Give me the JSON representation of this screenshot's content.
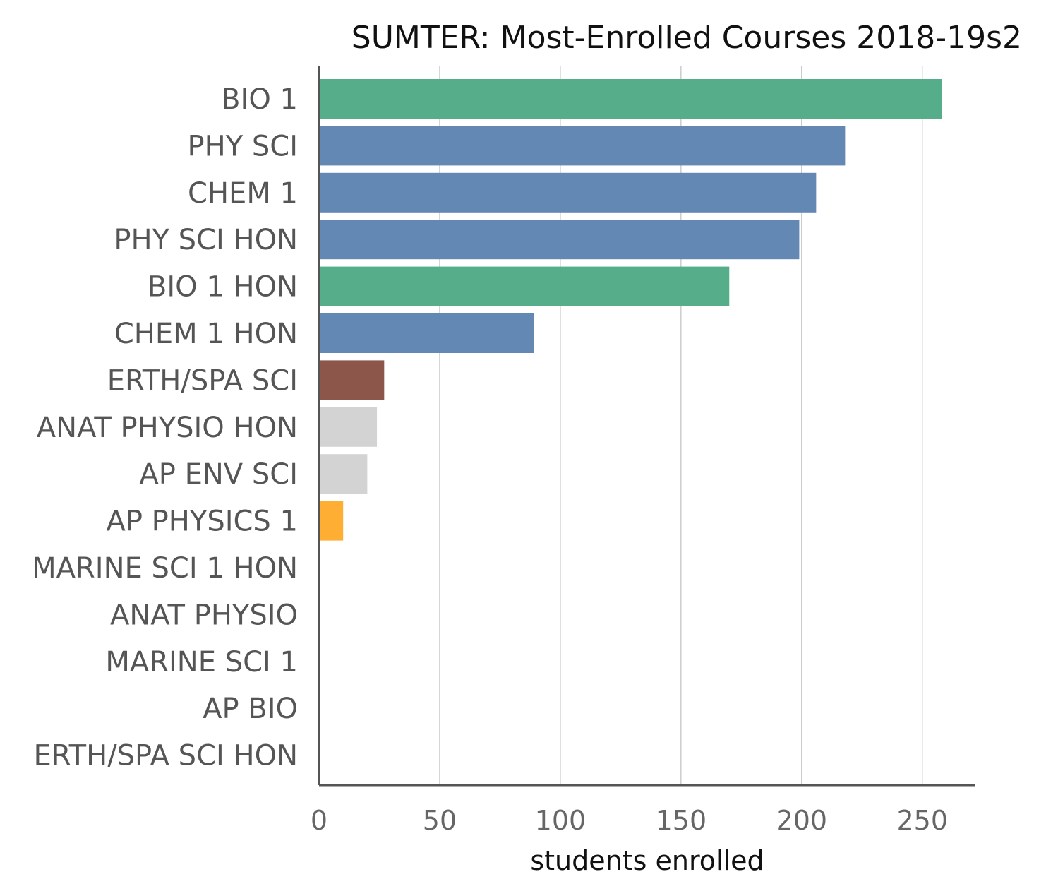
{
  "chart_data": {
    "type": "bar",
    "orientation": "horizontal",
    "title": "SUMTER: Most-Enrolled Courses 2018-19s2",
    "xlabel": "students enrolled",
    "ylabel": "",
    "xlim": [
      0,
      272
    ],
    "xticks": [
      0,
      50,
      100,
      150,
      200,
      250
    ],
    "grid": "vertical",
    "categories": [
      "BIO 1",
      "PHY SCI",
      "CHEM 1",
      "PHY SCI HON",
      "BIO 1 HON",
      "CHEM 1 HON",
      "ERTH/SPA SCI",
      "ANAT PHYSIO HON",
      "AP ENV SCI",
      "AP PHYSICS 1",
      "MARINE SCI 1 HON",
      "ANAT PHYSIO",
      "MARINE SCI 1",
      "AP BIO",
      "ERTH/SPA SCI HON"
    ],
    "values": [
      258,
      218,
      206,
      199,
      170,
      89,
      27,
      24,
      20,
      10,
      0,
      0,
      0,
      0,
      0
    ],
    "colors": [
      "#55ad89",
      "#6388b4",
      "#6388b4",
      "#6388b4",
      "#55ad89",
      "#6388b4",
      "#8c564b",
      "#d3d3d3",
      "#d3d3d3",
      "#ffae34",
      "#d3d3d3",
      "#d3d3d3",
      "#d3d3d3",
      "#d3d3d3",
      "#d3d3d3"
    ]
  }
}
